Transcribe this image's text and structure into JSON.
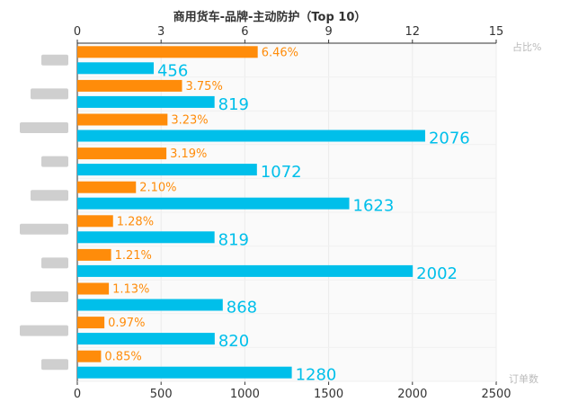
{
  "chart_data": {
    "type": "bar",
    "title": "商用货车-品牌-主动防护（Top 10）",
    "categories": [
      "",
      "",
      "",
      "",
      "",
      "",
      "",
      "",
      "",
      ""
    ],
    "series": [
      {
        "name": "占比%",
        "axis": "top",
        "color": "#ff8c0a",
        "values": [
          6.46,
          3.75,
          3.23,
          3.19,
          2.1,
          1.28,
          1.21,
          1.13,
          0.97,
          0.85
        ],
        "labels": [
          "6.46%",
          "3.75%",
          "3.23%",
          "3.19%",
          "2.10%",
          "1.28%",
          "1.21%",
          "1.13%",
          "0.97%",
          "0.85%"
        ]
      },
      {
        "name": "订单数",
        "axis": "bottom",
        "color": "#00bfea",
        "values": [
          456,
          819,
          2076,
          1072,
          1623,
          819,
          2002,
          868,
          820,
          1280
        ],
        "labels": [
          "456",
          "819",
          "2076",
          "1072",
          "1623",
          "819",
          "2002",
          "868",
          "820",
          "1280"
        ]
      }
    ],
    "top_axis": {
      "label": "占比%",
      "range": [
        0,
        15
      ],
      "ticks": [
        "0",
        "3",
        "6",
        "9",
        "12",
        "15"
      ]
    },
    "bottom_axis": {
      "label": "订单数",
      "range": [
        0,
        2500
      ],
      "ticks": [
        "0",
        "500",
        "1000",
        "1500",
        "2000",
        "2500"
      ]
    },
    "orientation": "horizontal",
    "grid": true,
    "legend": "none"
  }
}
